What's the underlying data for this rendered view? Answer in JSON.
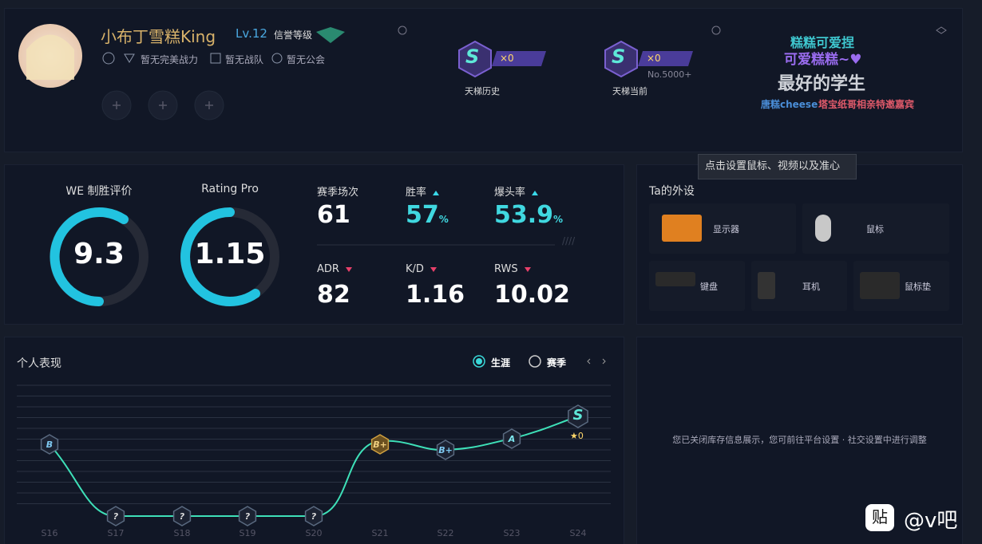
{
  "profile": {
    "name": "小布丁雪糕King",
    "level": "Lv.12",
    "credit_label": "信誉等级",
    "badges": [
      "暂无完美战力",
      "暂无战队",
      "暂无公会"
    ]
  },
  "ladder": [
    {
      "grade": "S",
      "stars": "×0",
      "label": "天梯历史"
    },
    {
      "grade": "S",
      "stars": "×0",
      "label": "天梯当前",
      "rank": "No.5000+"
    }
  ],
  "banner": {
    "line1": "糕糕可爱捏",
    "line2": "可爱糕糕~♥",
    "line3": "最好的学生",
    "sponsor1": "唐糕cheese",
    "sponsor2": "塔宝纸哥相亲特邀嘉宾"
  },
  "tooltip": "点击设置鼠标、视频以及准心",
  "ratings": [
    {
      "label": "WE 制胜评价",
      "value": "9.3"
    },
    {
      "label": "Rating Pro",
      "value": "1.15"
    }
  ],
  "stats": [
    {
      "label": "赛季场次",
      "value": "61"
    },
    {
      "label": "胜率",
      "value": "57",
      "unit": "%",
      "trend": "up"
    },
    {
      "label": "爆头率",
      "value": "53.9",
      "unit": "%",
      "trend": "up"
    },
    {
      "label": "ADR",
      "value": "82",
      "trend": "down"
    },
    {
      "label": "K/D",
      "value": "1.16",
      "trend": "down"
    },
    {
      "label": "RWS",
      "value": "10.02",
      "trend": "down"
    }
  ],
  "gear": {
    "title": "Ta的外设",
    "items": [
      "显示器",
      "鼠标",
      "键盘",
      "耳机",
      "鼠标垫"
    ]
  },
  "performance": {
    "title": "个人表现",
    "tabs": [
      "生涯",
      "赛季"
    ],
    "seasons": [
      "S16",
      "S17",
      "S18",
      "S19",
      "S20",
      "S21",
      "S22",
      "S23",
      "S24"
    ],
    "grades": [
      "B",
      "?",
      "?",
      "?",
      "?",
      "B+",
      "B+",
      "A",
      "S"
    ],
    "star": "★0"
  },
  "inventory_notice": "您已关闭库存信息展示，您可前往平台设置 · 社交设置中进行调整",
  "watermark": "@v吧"
}
